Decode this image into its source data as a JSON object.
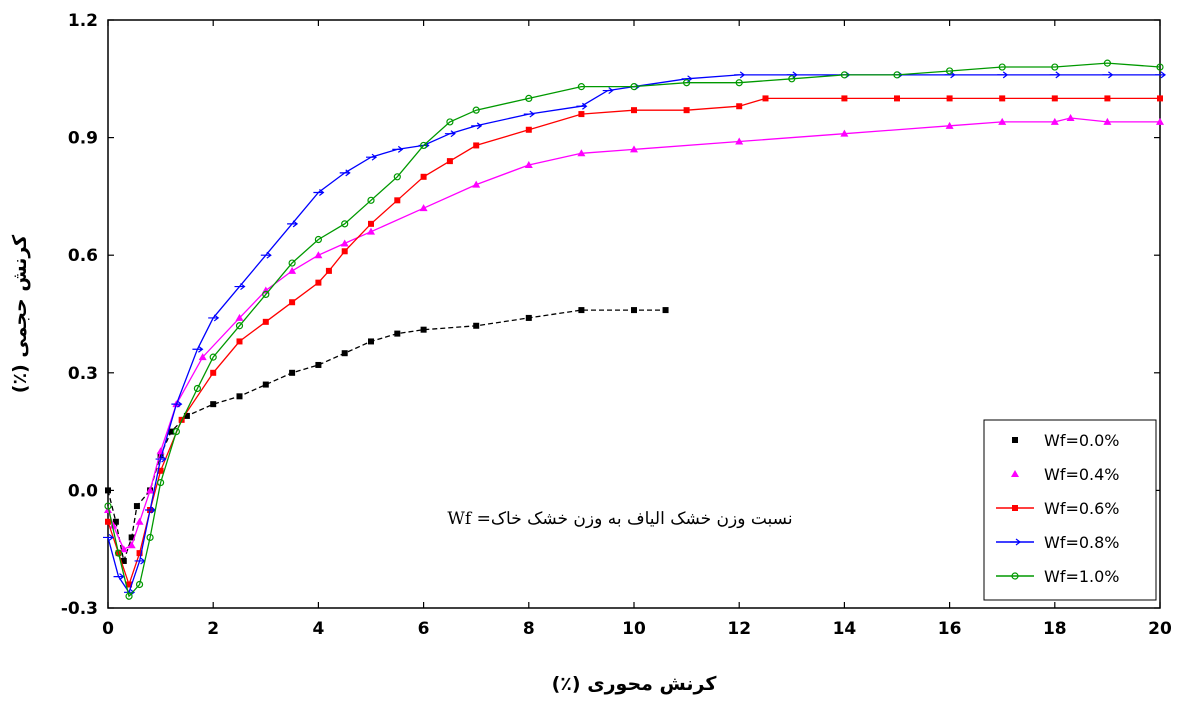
{
  "chart_data": {
    "type": "line",
    "xlabel": "کرنش محوری (٪)",
    "ylabel": "کرنش حجمی (٪)",
    "xlim": [
      0,
      20
    ],
    "ylim": [
      -0.3,
      1.2
    ],
    "xticks": [
      "0",
      "2",
      "4",
      "6",
      "8",
      "10",
      "12",
      "14",
      "16",
      "18",
      "20"
    ],
    "yticks": [
      "-0.3",
      "0.0",
      "0.3",
      "0.6",
      "0.9",
      "1.2"
    ],
    "annotation": "نسبت وزن خشک الیاف به وزن خشک خاک= Wf",
    "legend_position": "bottom-right",
    "grid": false,
    "series": [
      {
        "name": "Wf=0.0%",
        "color": "#000000",
        "marker": "square",
        "points": [
          [
            0,
            0.0
          ],
          [
            0.15,
            -0.08
          ],
          [
            0.3,
            -0.18
          ],
          [
            0.45,
            -0.12
          ],
          [
            0.55,
            -0.04
          ],
          [
            0.8,
            0.0
          ],
          [
            1.0,
            0.09
          ],
          [
            1.2,
            0.15
          ],
          [
            1.5,
            0.19
          ],
          [
            2.0,
            0.22
          ],
          [
            2.5,
            0.24
          ],
          [
            3.0,
            0.27
          ],
          [
            3.5,
            0.3
          ],
          [
            4.0,
            0.32
          ],
          [
            4.5,
            0.35
          ],
          [
            5.0,
            0.38
          ],
          [
            5.5,
            0.4
          ],
          [
            6.0,
            0.41
          ],
          [
            7.0,
            0.42
          ],
          [
            8.0,
            0.44
          ],
          [
            9.0,
            0.46
          ],
          [
            10.0,
            0.46
          ],
          [
            10.6,
            0.46
          ]
        ]
      },
      {
        "name": "Wf=0.4%",
        "color": "#ff00ff",
        "marker": "triangle",
        "points": [
          [
            0,
            -0.05
          ],
          [
            0.1,
            -0.09
          ],
          [
            0.3,
            -0.15
          ],
          [
            0.45,
            -0.14
          ],
          [
            0.6,
            -0.08
          ],
          [
            0.8,
            0.0
          ],
          [
            1.0,
            0.1
          ],
          [
            1.3,
            0.22
          ],
          [
            1.8,
            0.34
          ],
          [
            2.5,
            0.44
          ],
          [
            3.0,
            0.51
          ],
          [
            3.5,
            0.56
          ],
          [
            4.0,
            0.6
          ],
          [
            4.5,
            0.63
          ],
          [
            5.0,
            0.66
          ],
          [
            6.0,
            0.72
          ],
          [
            7.0,
            0.78
          ],
          [
            8.0,
            0.83
          ],
          [
            9.0,
            0.86
          ],
          [
            10.0,
            0.87
          ],
          [
            12.0,
            0.89
          ],
          [
            14.0,
            0.91
          ],
          [
            16.0,
            0.93
          ],
          [
            17.0,
            0.94
          ],
          [
            18.0,
            0.94
          ],
          [
            18.3,
            0.95
          ],
          [
            19.0,
            0.94
          ],
          [
            20.0,
            0.94
          ]
        ]
      },
      {
        "name": "Wf=0.6%",
        "color": "#ff0000",
        "marker": "square",
        "points": [
          [
            0,
            -0.08
          ],
          [
            0.2,
            -0.16
          ],
          [
            0.4,
            -0.24
          ],
          [
            0.6,
            -0.16
          ],
          [
            0.8,
            -0.05
          ],
          [
            1.0,
            0.05
          ],
          [
            1.4,
            0.18
          ],
          [
            2.0,
            0.3
          ],
          [
            2.5,
            0.38
          ],
          [
            3.0,
            0.43
          ],
          [
            3.5,
            0.48
          ],
          [
            4.0,
            0.53
          ],
          [
            4.2,
            0.56
          ],
          [
            4.5,
            0.61
          ],
          [
            5.0,
            0.68
          ],
          [
            5.5,
            0.74
          ],
          [
            6.0,
            0.8
          ],
          [
            6.5,
            0.84
          ],
          [
            7.0,
            0.88
          ],
          [
            8.0,
            0.92
          ],
          [
            9.0,
            0.96
          ],
          [
            10.0,
            0.97
          ],
          [
            11.0,
            0.97
          ],
          [
            12.0,
            0.98
          ],
          [
            12.5,
            1.0
          ],
          [
            14.0,
            1.0
          ],
          [
            15.0,
            1.0
          ],
          [
            16.0,
            1.0
          ],
          [
            17.0,
            1.0
          ],
          [
            18.0,
            1.0
          ],
          [
            19.0,
            1.0
          ],
          [
            20.0,
            1.0
          ]
        ]
      },
      {
        "name": "Wf=0.8%",
        "color": "#0000ff",
        "marker": "arrow",
        "points": [
          [
            0,
            -0.12
          ],
          [
            0.2,
            -0.22
          ],
          [
            0.4,
            -0.26
          ],
          [
            0.6,
            -0.18
          ],
          [
            0.8,
            -0.05
          ],
          [
            1.0,
            0.08
          ],
          [
            1.3,
            0.22
          ],
          [
            1.7,
            0.36
          ],
          [
            2.0,
            0.44
          ],
          [
            2.5,
            0.52
          ],
          [
            3.0,
            0.6
          ],
          [
            3.5,
            0.68
          ],
          [
            4.0,
            0.76
          ],
          [
            4.5,
            0.81
          ],
          [
            5.0,
            0.85
          ],
          [
            5.5,
            0.87
          ],
          [
            6.0,
            0.88
          ],
          [
            6.5,
            0.91
          ],
          [
            7.0,
            0.93
          ],
          [
            8.0,
            0.96
          ],
          [
            9.0,
            0.98
          ],
          [
            9.5,
            1.02
          ],
          [
            10.0,
            1.03
          ],
          [
            11.0,
            1.05
          ],
          [
            12.0,
            1.06
          ],
          [
            13.0,
            1.06
          ],
          [
            14.0,
            1.06
          ],
          [
            15.0,
            1.06
          ],
          [
            16.0,
            1.06
          ],
          [
            17.0,
            1.06
          ],
          [
            18.0,
            1.06
          ],
          [
            19.0,
            1.06
          ],
          [
            20.0,
            1.06
          ]
        ]
      },
      {
        "name": "Wf=1.0%",
        "color": "#009900",
        "marker": "circle",
        "points": [
          [
            0,
            -0.04
          ],
          [
            0.2,
            -0.16
          ],
          [
            0.4,
            -0.27
          ],
          [
            0.6,
            -0.24
          ],
          [
            0.8,
            -0.12
          ],
          [
            1.0,
            0.02
          ],
          [
            1.3,
            0.15
          ],
          [
            1.7,
            0.26
          ],
          [
            2.0,
            0.34
          ],
          [
            2.5,
            0.42
          ],
          [
            3.0,
            0.5
          ],
          [
            3.5,
            0.58
          ],
          [
            4.0,
            0.64
          ],
          [
            4.5,
            0.68
          ],
          [
            5.0,
            0.74
          ],
          [
            5.5,
            0.8
          ],
          [
            6.0,
            0.88
          ],
          [
            6.5,
            0.94
          ],
          [
            7.0,
            0.97
          ],
          [
            8.0,
            1.0
          ],
          [
            9.0,
            1.03
          ],
          [
            10.0,
            1.03
          ],
          [
            11.0,
            1.04
          ],
          [
            12.0,
            1.04
          ],
          [
            13.0,
            1.05
          ],
          [
            14.0,
            1.06
          ],
          [
            15.0,
            1.06
          ],
          [
            16.0,
            1.07
          ],
          [
            17.0,
            1.08
          ],
          [
            18.0,
            1.08
          ],
          [
            19.0,
            1.09
          ],
          [
            20.0,
            1.08
          ]
        ]
      }
    ]
  }
}
